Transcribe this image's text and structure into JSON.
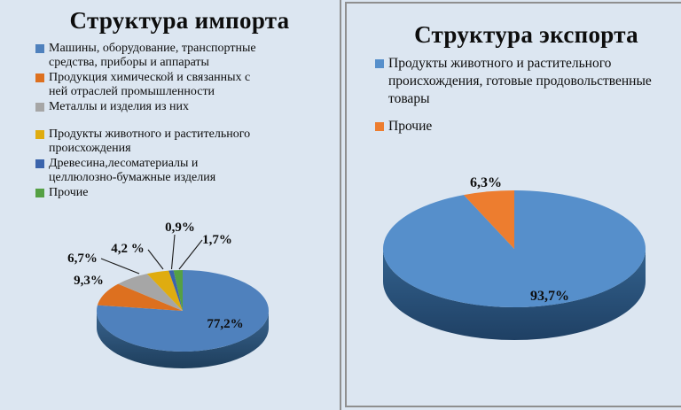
{
  "background_color": "#dce6f1",
  "divider_color": "#8f8f8f",
  "chart_data": [
    {
      "type": "pie",
      "effect": "3d",
      "title": "Структура импорта",
      "legend_position": "top-left",
      "start_angle_deg": 0,
      "direction": "clockwise",
      "slices": [
        {
          "label": "Машины, оборудование, транспортные средства, приборы и аппараты",
          "value": 77.2,
          "display": "77,2%",
          "color": "#4f81bd"
        },
        {
          "label": "Продукция химической и связанных с ней отраслей промышленности",
          "value": 9.3,
          "display": "9,3%",
          "color": "#dd701f"
        },
        {
          "label": "Металлы и изделия из них",
          "value": 6.7,
          "display": "6,7%",
          "color": "#a6a6a6"
        },
        {
          "label": "Продукты животного и растительного происхождения",
          "value": 4.2,
          "display": "4,2 %",
          "color": "#dfac10"
        },
        {
          "label": "Древесина,лесоматериалы и целлюлозно-бумажные изделия",
          "value": 0.9,
          "display": "0,9%",
          "color": "#3b64ac"
        },
        {
          "label": "Прочие",
          "value": 1.7,
          "display": "1,7%",
          "color": "#55a044"
        }
      ]
    },
    {
      "type": "pie",
      "effect": "3d",
      "title": "Структура экспорта",
      "legend_position": "top-left",
      "start_angle_deg": 0,
      "direction": "clockwise",
      "slices": [
        {
          "label": "Продукты животного и растительного происхождения, готовые продовольственные товары",
          "value": 93.7,
          "display": "93,7%",
          "color": "#568fcb"
        },
        {
          "label": "Прочие",
          "value": 6.3,
          "display": "6,3%",
          "color": "#ed7d2f"
        }
      ]
    }
  ]
}
